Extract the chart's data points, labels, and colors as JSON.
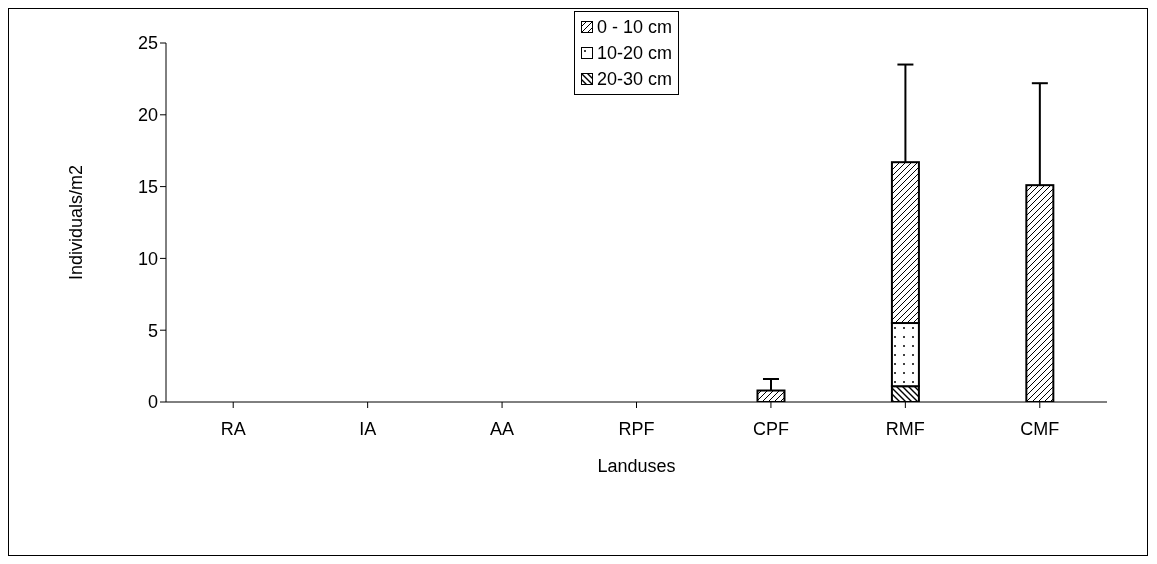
{
  "chart_data": {
    "type": "bar",
    "stacked": true,
    "xlabel": "Landuses",
    "ylabel": "Individuals/m2",
    "categories": [
      "RA",
      "IA",
      "AA",
      "RPF",
      "CPF",
      "RMF",
      "CMF"
    ],
    "series": [
      {
        "name": "20-30 cm",
        "color": "#000000",
        "values": [
          0,
          0,
          0,
          0,
          0,
          1.1,
          0
        ]
      },
      {
        "name": "10-20 cm",
        "color": "#000000",
        "values": [
          0,
          0,
          0,
          0,
          0,
          4.4,
          0
        ]
      },
      {
        "name": "0 - 10 cm",
        "color": "#000000",
        "values": [
          0,
          0,
          0,
          0,
          0.8,
          11.2,
          15.1
        ],
        "errors": [
          null,
          null,
          null,
          null,
          [
            0.8,
            1.6
          ],
          [
            16.7,
            23.5
          ],
          [
            15.1,
            22.2
          ]
        ]
      }
    ],
    "ylim": [
      0,
      25
    ],
    "yticks": [
      0,
      5,
      10,
      15,
      20,
      25
    ],
    "grid": false,
    "legend": "top"
  }
}
